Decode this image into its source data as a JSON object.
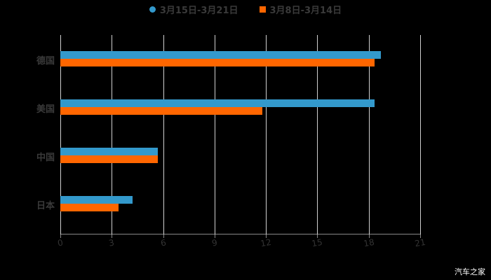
{
  "chart_data": {
    "type": "bar",
    "orientation": "horizontal",
    "title": "",
    "categories": [
      "德国",
      "美国",
      "中国",
      "日本"
    ],
    "series": [
      {
        "name": "3月15日-3月21日",
        "color": "#3399cc",
        "values": [
          18.7,
          18.35,
          5.7,
          4.2
        ]
      },
      {
        "name": "3月8日-3月14日",
        "color": "#ff6600",
        "values": [
          18.35,
          11.8,
          5.7,
          3.4
        ]
      }
    ],
    "xlabel": "",
    "ylabel": "",
    "xlim": [
      0,
      21
    ],
    "xticks": [
      "0",
      "3",
      "6",
      "9",
      "12",
      "15",
      "18",
      "21"
    ],
    "grid": true,
    "legend_position": "top"
  },
  "legend": {
    "s1": "3月15日-3月21日",
    "s2": "3月8日-3月14日"
  },
  "watermark": "汽车之家"
}
